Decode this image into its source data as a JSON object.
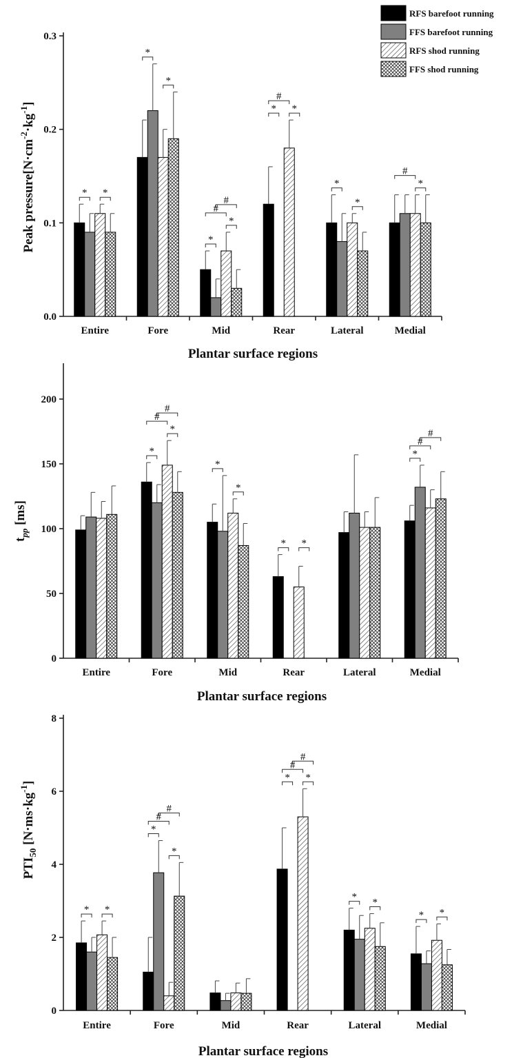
{
  "colors": {
    "rfs_barefoot": "#000000",
    "ffs_barefoot": "#808080",
    "rfs_shod": "hatch-diagonal",
    "ffs_shod": "hatch-crosshatch"
  },
  "legend": [
    "RFS barefoot running",
    "FFS barefoot running",
    "RFS shod running",
    "FFS shod running"
  ],
  "chart_data": [
    {
      "type": "bar",
      "ylabel": "Peak pressure[N·cm⁻²·kg⁻¹]",
      "xlabel": "Plantar surface regions",
      "ylim": [
        0,
        0.3
      ],
      "yticks": [
        "0.0",
        "0.1",
        "0.2",
        "0.3"
      ],
      "categories": [
        "Entire",
        "Fore",
        "Mid",
        "Rear",
        "Lateral",
        "Medial"
      ],
      "series": [
        {
          "name": "RFS barefoot running",
          "values": [
            0.1,
            0.17,
            0.05,
            0.12,
            0.1,
            0.1
          ],
          "errors": [
            0.02,
            0.04,
            0.02,
            0.04,
            0.03,
            0.03
          ]
        },
        {
          "name": "FFS barefoot running",
          "values": [
            0.09,
            0.22,
            0.02,
            null,
            0.08,
            0.11
          ],
          "errors": [
            0.02,
            0.05,
            0.02,
            null,
            0.03,
            0.02
          ]
        },
        {
          "name": "RFS shod running",
          "values": [
            0.11,
            0.17,
            0.07,
            0.18,
            0.1,
            0.11
          ],
          "errors": [
            0.01,
            0.03,
            0.02,
            0.03,
            0.01,
            0.02
          ]
        },
        {
          "name": "FFS shod running",
          "values": [
            0.09,
            0.19,
            0.03,
            null,
            0.07,
            0.1
          ],
          "errors": [
            0.02,
            0.05,
            0.02,
            null,
            0.02,
            0.03
          ]
        }
      ],
      "significance": [
        {
          "category": "Entire",
          "pair": [
            0,
            1
          ],
          "mark": "*",
          "level": 0
        },
        {
          "category": "Entire",
          "pair": [
            2,
            3
          ],
          "mark": "*",
          "level": 0
        },
        {
          "category": "Fore",
          "pair": [
            0,
            1
          ],
          "mark": "*",
          "level": 0
        },
        {
          "category": "Fore",
          "pair": [
            2,
            3
          ],
          "mark": "*",
          "level": 0
        },
        {
          "category": "Mid",
          "pair": [
            0,
            1
          ],
          "mark": "*",
          "level": 0
        },
        {
          "category": "Mid",
          "pair": [
            2,
            3
          ],
          "mark": "*",
          "level": 0
        },
        {
          "category": "Mid",
          "pair": [
            0,
            2
          ],
          "mark": "#",
          "level": 1
        },
        {
          "category": "Mid",
          "pair": [
            1,
            3
          ],
          "mark": "#",
          "level": 2
        },
        {
          "category": "Rear",
          "pair": [
            0,
            1
          ],
          "mark": "*",
          "level": 0
        },
        {
          "category": "Rear",
          "pair": [
            2,
            3
          ],
          "mark": "*",
          "level": 0
        },
        {
          "category": "Rear",
          "pair": [
            0,
            2
          ],
          "mark": "#",
          "level": 1
        },
        {
          "category": "Lateral",
          "pair": [
            0,
            1
          ],
          "mark": "*",
          "level": 0
        },
        {
          "category": "Lateral",
          "pair": [
            2,
            3
          ],
          "mark": "*",
          "level": 0
        },
        {
          "category": "Medial",
          "pair": [
            2,
            3
          ],
          "mark": "*",
          "level": 0
        },
        {
          "category": "Medial",
          "pair": [
            0,
            2
          ],
          "mark": "#",
          "level": 1
        }
      ]
    },
    {
      "type": "bar",
      "ylabel": "t_pp [ms]",
      "xlabel": "Plantar surface regions",
      "ylim": [
        0,
        225
      ],
      "yticks": [
        "0",
        "50",
        "100",
        "150",
        "200"
      ],
      "categories": [
        "Entire",
        "Fore",
        "Mid",
        "Rear",
        "Lateral",
        "Medial"
      ],
      "series": [
        {
          "name": "RFS barefoot running",
          "values": [
            99,
            136,
            105,
            63,
            97,
            106
          ],
          "errors": [
            11,
            15,
            14,
            17,
            16,
            12
          ]
        },
        {
          "name": "FFS barefoot running",
          "values": [
            109,
            120,
            98,
            null,
            112,
            132
          ],
          "errors": [
            19,
            14,
            43,
            null,
            45,
            17
          ]
        },
        {
          "name": "RFS shod running",
          "values": [
            108,
            149,
            112,
            55,
            101,
            116
          ],
          "errors": [
            13,
            19,
            11,
            16,
            12,
            14
          ]
        },
        {
          "name": "FFS shod running",
          "values": [
            111,
            128,
            87,
            null,
            101,
            123
          ],
          "errors": [
            22,
            16,
            17,
            null,
            23,
            21
          ]
        }
      ],
      "significance": [
        {
          "category": "Fore",
          "pair": [
            0,
            1
          ],
          "mark": "*",
          "level": 0
        },
        {
          "category": "Fore",
          "pair": [
            2,
            3
          ],
          "mark": "*",
          "level": 0
        },
        {
          "category": "Fore",
          "pair": [
            0,
            2
          ],
          "mark": "#",
          "level": 1
        },
        {
          "category": "Fore",
          "pair": [
            1,
            3
          ],
          "mark": "#",
          "level": 2
        },
        {
          "category": "Mid",
          "pair": [
            0,
            1
          ],
          "mark": "*",
          "level": 0
        },
        {
          "category": "Mid",
          "pair": [
            2,
            3
          ],
          "mark": "*",
          "level": 0
        },
        {
          "category": "Rear",
          "pair": [
            0,
            1
          ],
          "mark": "*",
          "level": 0
        },
        {
          "category": "Rear",
          "pair": [
            2,
            3
          ],
          "mark": "*",
          "level": 0
        },
        {
          "category": "Medial",
          "pair": [
            0,
            1
          ],
          "mark": "*",
          "level": 0
        },
        {
          "category": "Medial",
          "pair": [
            0,
            2
          ],
          "mark": "#",
          "level": 1
        },
        {
          "category": "Medial",
          "pair": [
            1,
            3
          ],
          "mark": "#",
          "level": 2
        }
      ]
    },
    {
      "type": "bar",
      "ylabel": "PTI50 [N·ms·kg⁻¹]",
      "xlabel": "Plantar surface regions",
      "ylim": [
        0,
        8
      ],
      "yticks": [
        "0",
        "2",
        "4",
        "6",
        "8"
      ],
      "categories": [
        "Entire",
        "Fore",
        "Mid",
        "Rear",
        "Lateral",
        "Medial"
      ],
      "series": [
        {
          "name": "RFS barefoot running",
          "values": [
            1.85,
            1.05,
            0.48,
            3.87,
            2.2,
            1.55
          ],
          "errors": [
            0.6,
            0.95,
            0.33,
            1.13,
            0.6,
            0.75
          ]
        },
        {
          "name": "FFS barefoot running",
          "values": [
            1.6,
            3.77,
            0.27,
            null,
            1.95,
            1.28
          ],
          "errors": [
            0.4,
            0.88,
            0.2,
            null,
            0.65,
            0.35
          ]
        },
        {
          "name": "RFS shod running",
          "values": [
            2.07,
            0.4,
            0.48,
            5.3,
            2.25,
            1.92
          ],
          "errors": [
            0.38,
            0.37,
            0.27,
            0.77,
            0.4,
            0.45
          ]
        },
        {
          "name": "FFS shod running",
          "values": [
            1.45,
            3.13,
            0.47,
            null,
            1.75,
            1.25
          ],
          "errors": [
            0.55,
            0.92,
            0.4,
            null,
            0.65,
            0.42
          ]
        }
      ],
      "significance": [
        {
          "category": "Entire",
          "pair": [
            0,
            1
          ],
          "mark": "*",
          "level": 0
        },
        {
          "category": "Entire",
          "pair": [
            2,
            3
          ],
          "mark": "*",
          "level": 0
        },
        {
          "category": "Fore",
          "pair": [
            0,
            1
          ],
          "mark": "*",
          "level": 0
        },
        {
          "category": "Fore",
          "pair": [
            2,
            3
          ],
          "mark": "*",
          "level": 0
        },
        {
          "category": "Fore",
          "pair": [
            0,
            2
          ],
          "mark": "#",
          "level": 1
        },
        {
          "category": "Fore",
          "pair": [
            1,
            3
          ],
          "mark": "#",
          "level": 2
        },
        {
          "category": "Rear",
          "pair": [
            0,
            1
          ],
          "mark": "*",
          "level": 0
        },
        {
          "category": "Rear",
          "pair": [
            2,
            3
          ],
          "mark": "*",
          "level": 0
        },
        {
          "category": "Rear",
          "pair": [
            0,
            2
          ],
          "mark": "#",
          "level": 1
        },
        {
          "category": "Rear",
          "pair": [
            1,
            3
          ],
          "mark": "#",
          "level": 2
        },
        {
          "category": "Lateral",
          "pair": [
            0,
            1
          ],
          "mark": "*",
          "level": 0
        },
        {
          "category": "Lateral",
          "pair": [
            2,
            3
          ],
          "mark": "*",
          "level": 0
        },
        {
          "category": "Medial",
          "pair": [
            0,
            1
          ],
          "mark": "*",
          "level": 0
        },
        {
          "category": "Medial",
          "pair": [
            2,
            3
          ],
          "mark": "*",
          "level": 0
        }
      ]
    }
  ]
}
